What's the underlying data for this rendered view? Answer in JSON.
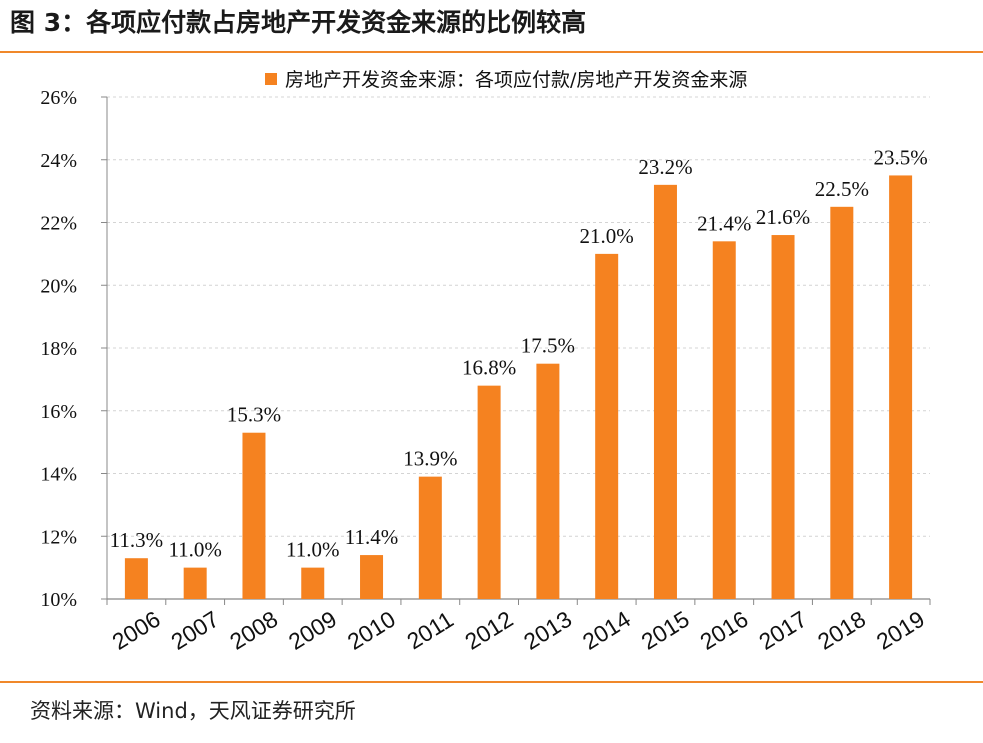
{
  "figure": {
    "title": "图 3：各项应付款占房地产开发资金来源的比例较高",
    "source": "资料来源：Wind，天风证券研究所"
  },
  "colors": {
    "bar": "#f58220",
    "rule": "#f0882a",
    "grid": "#d4d4d4",
    "axis": "#888888"
  },
  "chart_data": {
    "type": "bar",
    "categories": [
      "2006",
      "2007",
      "2008",
      "2009",
      "2010",
      "2011",
      "2012",
      "2013",
      "2014",
      "2015",
      "2016",
      "2017",
      "2018",
      "2019"
    ],
    "series": [
      {
        "name": "房地产开发资金来源：各项应付款/房地产开发资金来源",
        "values": [
          11.3,
          11.0,
          15.3,
          11.0,
          11.4,
          13.9,
          16.8,
          17.5,
          21.0,
          23.2,
          21.4,
          21.6,
          22.5,
          23.5
        ],
        "labels": [
          "11.3%",
          "11.0%",
          "15.3%",
          "11.0%",
          "11.4%",
          "13.9%",
          "16.8%",
          "17.5%",
          "21.0%",
          "23.2%",
          "21.4%",
          "21.6%",
          "22.5%",
          "23.5%"
        ]
      }
    ],
    "ylim": [
      10,
      26
    ],
    "yticks": [
      10,
      12,
      14,
      16,
      18,
      20,
      22,
      24,
      26
    ],
    "ytick_labels": [
      "10%",
      "12%",
      "14%",
      "16%",
      "18%",
      "20%",
      "22%",
      "24%",
      "26%"
    ],
    "grid": true,
    "legend": "top",
    "xlabel": "",
    "ylabel": ""
  }
}
